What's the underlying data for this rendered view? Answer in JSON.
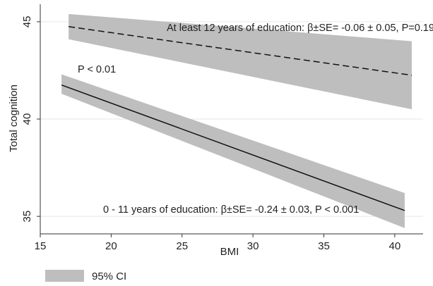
{
  "chart_data": {
    "type": "line",
    "xlabel": "BMI",
    "ylabel": "Total cognition",
    "xlim": [
      15,
      42
    ],
    "ylim": [
      34.1,
      45.9
    ],
    "xticks": [
      15,
      20,
      25,
      30,
      35,
      40
    ],
    "yticks": [
      35,
      40,
      45
    ],
    "grid": "horizontal",
    "series": [
      {
        "style": "dashed",
        "x": [
          17,
          41.2
        ],
        "y": [
          44.75,
          42.25
        ],
        "ci_lower": [
          44.1,
          40.5
        ],
        "ci_upper": [
          45.4,
          44.0
        ],
        "annotation": "At least 12 years of education: β±SE= -0.06 ± 0.05, P=0.19"
      },
      {
        "style": "solid",
        "x": [
          16.5,
          40.7
        ],
        "y": [
          41.75,
          35.3
        ],
        "ci_lower": [
          41.3,
          34.4
        ],
        "ci_upper": [
          42.3,
          36.2
        ],
        "annotation": "0 - 11 years of education: β±SE= -0.24 ± 0.03, P < 0.001"
      }
    ],
    "extra_annotation": "P < 0.01",
    "legend": {
      "label": "95% CI",
      "position": "bottom-left"
    },
    "colors": {
      "ci_band": "#bebebe",
      "line": "#111111",
      "grid": "#e6e6e6",
      "axis": "#333333"
    }
  }
}
